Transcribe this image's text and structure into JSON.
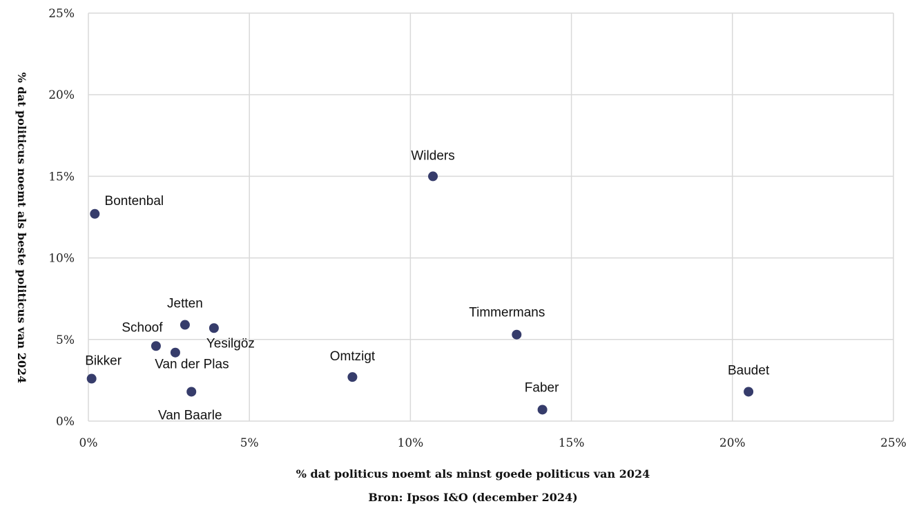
{
  "chart_data": {
    "type": "scatter",
    "xlabel": "% dat politicus noemt als minst goede politicus van 2024",
    "ylabel": "% dat politicus noemt als beste politicus van 2024",
    "source": "Bron: Ipsos I&O (december 2024)",
    "xlim": [
      0,
      25
    ],
    "ylim": [
      0,
      25
    ],
    "x_ticks": [
      "0%",
      "5%",
      "10%",
      "15%",
      "20%",
      "25%"
    ],
    "y_ticks": [
      "0%",
      "5%",
      "10%",
      "15%",
      "20%",
      "25%"
    ],
    "grid": true,
    "marker_color": "#363c6b",
    "points": [
      {
        "name": "Wilders",
        "x": 10.7,
        "y": 15.0
      },
      {
        "name": "Bontenbal",
        "x": 0.2,
        "y": 12.7
      },
      {
        "name": "Jetten",
        "x": 3.0,
        "y": 5.9
      },
      {
        "name": "Yesilgöz",
        "x": 3.9,
        "y": 5.7
      },
      {
        "name": "Schoof",
        "x": 2.1,
        "y": 4.6
      },
      {
        "name": "Van der Plas",
        "x": 2.7,
        "y": 4.2
      },
      {
        "name": "Bikker",
        "x": 0.1,
        "y": 2.6
      },
      {
        "name": "Van Baarle",
        "x": 3.2,
        "y": 1.8
      },
      {
        "name": "Omtzigt",
        "x": 8.2,
        "y": 2.7
      },
      {
        "name": "Timmermans",
        "x": 13.3,
        "y": 5.3
      },
      {
        "name": "Faber",
        "x": 14.1,
        "y": 0.7
      },
      {
        "name": "Baudet",
        "x": 20.5,
        "y": 1.8
      }
    ]
  }
}
